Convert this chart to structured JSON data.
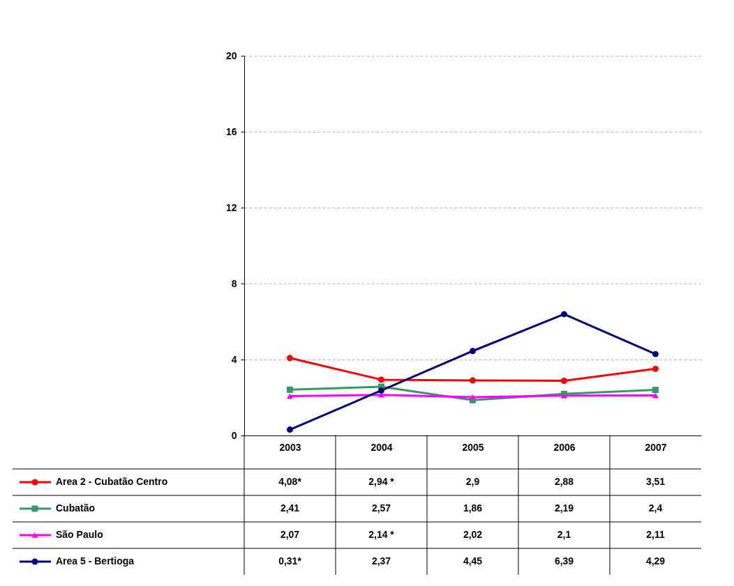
{
  "chart_data": {
    "type": "line",
    "categories": [
      "2003",
      "2004",
      "2005",
      "2006",
      "2007"
    ],
    "ylim": [
      0,
      20
    ],
    "yticks": [
      0,
      4,
      8,
      12,
      16,
      20
    ],
    "grid": "y",
    "legend": "bottom left",
    "line_style": "solid",
    "series": [
      {
        "name": "Area 2 - Cubatão Centro",
        "color": "#ff0000",
        "marker": "circle",
        "values": [
          4.08,
          2.94,
          2.9,
          2.88,
          3.51
        ],
        "value_labels": [
          "4,08*",
          "2,94 *",
          "2,9",
          "2,88",
          "3,51"
        ]
      },
      {
        "name": "Cubatão",
        "color": "#339966",
        "marker": "square",
        "values": [
          2.41,
          2.57,
          1.86,
          2.19,
          2.4
        ],
        "value_labels": [
          "2,41",
          "2,57",
          "1,86",
          "2,19",
          "2,4"
        ]
      },
      {
        "name": "São Paulo",
        "color": "#ff00ff",
        "marker": "triangle",
        "values": [
          2.07,
          2.14,
          2.02,
          2.1,
          2.11
        ],
        "value_labels": [
          "2,07",
          "2,14 *",
          "2,02",
          "2,1",
          "2,11"
        ]
      },
      {
        "name": "Area 5 - Bertioga",
        "color": "#000080",
        "marker": "circle",
        "values": [
          0.31,
          2.37,
          4.45,
          6.39,
          4.29
        ],
        "value_labels": [
          "0,31*",
          "2,37",
          "4,45",
          "6,39",
          "4,29"
        ]
      }
    ]
  }
}
